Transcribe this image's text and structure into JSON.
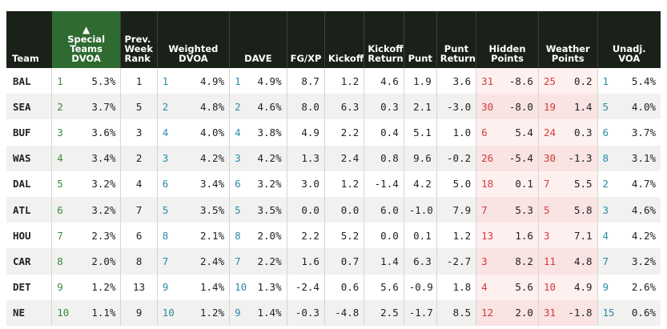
{
  "headers": {
    "team": "Team",
    "st_dvoa": [
      "Special",
      "Teams",
      "DVOA"
    ],
    "prev_rank": [
      "Prev.",
      "Week",
      "Rank"
    ],
    "weighted": [
      "Weighted",
      "DVOA"
    ],
    "dave": "DAVE",
    "fgxp": "FG/XP",
    "kickoff": "Kickoff",
    "kick_return": [
      "Kickoff",
      "Return"
    ],
    "punt": "Punt",
    "punt_return": [
      "Punt",
      "Return"
    ],
    "hidden": [
      "Hidden",
      "Points"
    ],
    "weather": [
      "Weather",
      "Points"
    ],
    "unadj": [
      "Unadj.",
      "VOA"
    ],
    "sort_arrow": "▲"
  },
  "rows": [
    {
      "team": "BAL",
      "st_rank": "1",
      "st": "5.3%",
      "prev": "1",
      "w_rank": "1",
      "w": "4.9%",
      "d_rank": "1",
      "d": "4.9%",
      "fgxp": "8.7",
      "ko": "1.2",
      "kr": "4.6",
      "punt": "1.9",
      "pr": "3.6",
      "h_rank": "31",
      "h": "-8.6",
      "wx_rank": "25",
      "wx": "0.2",
      "u_rank": "1",
      "u": "5.4%"
    },
    {
      "team": "SEA",
      "st_rank": "2",
      "st": "3.7%",
      "prev": "5",
      "w_rank": "2",
      "w": "4.8%",
      "d_rank": "2",
      "d": "4.6%",
      "fgxp": "8.0",
      "ko": "6.3",
      "kr": "0.3",
      "punt": "2.1",
      "pr": "-3.0",
      "h_rank": "30",
      "h": "-8.0",
      "wx_rank": "19",
      "wx": "1.4",
      "u_rank": "5",
      "u": "4.0%"
    },
    {
      "team": "BUF",
      "st_rank": "3",
      "st": "3.6%",
      "prev": "3",
      "w_rank": "4",
      "w": "4.0%",
      "d_rank": "4",
      "d": "3.8%",
      "fgxp": "4.9",
      "ko": "2.2",
      "kr": "0.4",
      "punt": "5.1",
      "pr": "1.0",
      "h_rank": "6",
      "h": "5.4",
      "wx_rank": "24",
      "wx": "0.3",
      "u_rank": "6",
      "u": "3.7%"
    },
    {
      "team": "WAS",
      "st_rank": "4",
      "st": "3.4%",
      "prev": "2",
      "w_rank": "3",
      "w": "4.2%",
      "d_rank": "3",
      "d": "4.2%",
      "fgxp": "1.3",
      "ko": "2.4",
      "kr": "0.8",
      "punt": "9.6",
      "pr": "-0.2",
      "h_rank": "26",
      "h": "-5.4",
      "wx_rank": "30",
      "wx": "-1.3",
      "u_rank": "8",
      "u": "3.1%"
    },
    {
      "team": "DAL",
      "st_rank": "5",
      "st": "3.2%",
      "prev": "4",
      "w_rank": "6",
      "w": "3.4%",
      "d_rank": "6",
      "d": "3.2%",
      "fgxp": "3.0",
      "ko": "1.2",
      "kr": "-1.4",
      "punt": "4.2",
      "pr": "5.0",
      "h_rank": "18",
      "h": "0.1",
      "wx_rank": "7",
      "wx": "5.5",
      "u_rank": "2",
      "u": "4.7%"
    },
    {
      "team": "ATL",
      "st_rank": "6",
      "st": "3.2%",
      "prev": "7",
      "w_rank": "5",
      "w": "3.5%",
      "d_rank": "5",
      "d": "3.5%",
      "fgxp": "0.0",
      "ko": "0.0",
      "kr": "6.0",
      "punt": "-1.0",
      "pr": "7.9",
      "h_rank": "7",
      "h": "5.3",
      "wx_rank": "5",
      "wx": "5.8",
      "u_rank": "3",
      "u": "4.6%"
    },
    {
      "team": "HOU",
      "st_rank": "7",
      "st": "2.3%",
      "prev": "6",
      "w_rank": "8",
      "w": "2.1%",
      "d_rank": "8",
      "d": "2.0%",
      "fgxp": "2.2",
      "ko": "5.2",
      "kr": "0.0",
      "punt": "0.1",
      "pr": "1.2",
      "h_rank": "13",
      "h": "1.6",
      "wx_rank": "3",
      "wx": "7.1",
      "u_rank": "4",
      "u": "4.2%"
    },
    {
      "team": "CAR",
      "st_rank": "8",
      "st": "2.0%",
      "prev": "8",
      "w_rank": "7",
      "w": "2.4%",
      "d_rank": "7",
      "d": "2.2%",
      "fgxp": "1.6",
      "ko": "0.7",
      "kr": "1.4",
      "punt": "6.3",
      "pr": "-2.7",
      "h_rank": "3",
      "h": "8.2",
      "wx_rank": "11",
      "wx": "4.8",
      "u_rank": "7",
      "u": "3.2%"
    },
    {
      "team": "DET",
      "st_rank": "9",
      "st": "1.2%",
      "prev": "13",
      "w_rank": "9",
      "w": "1.4%",
      "d_rank": "10",
      "d": "1.3%",
      "fgxp": "-2.4",
      "ko": "0.6",
      "kr": "5.6",
      "punt": "-0.9",
      "pr": "1.8",
      "h_rank": "4",
      "h": "5.6",
      "wx_rank": "10",
      "wx": "4.9",
      "u_rank": "9",
      "u": "2.6%"
    },
    {
      "team": "NE",
      "st_rank": "10",
      "st": "1.1%",
      "prev": "9",
      "w_rank": "10",
      "w": "1.2%",
      "d_rank": "9",
      "d": "1.4%",
      "fgxp": "-0.3",
      "ko": "-4.8",
      "kr": "2.5",
      "punt": "-1.7",
      "pr": "8.5",
      "h_rank": "12",
      "h": "2.0",
      "wx_rank": "31",
      "wx": "-1.8",
      "u_rank": "15",
      "u": "0.6%"
    }
  ]
}
